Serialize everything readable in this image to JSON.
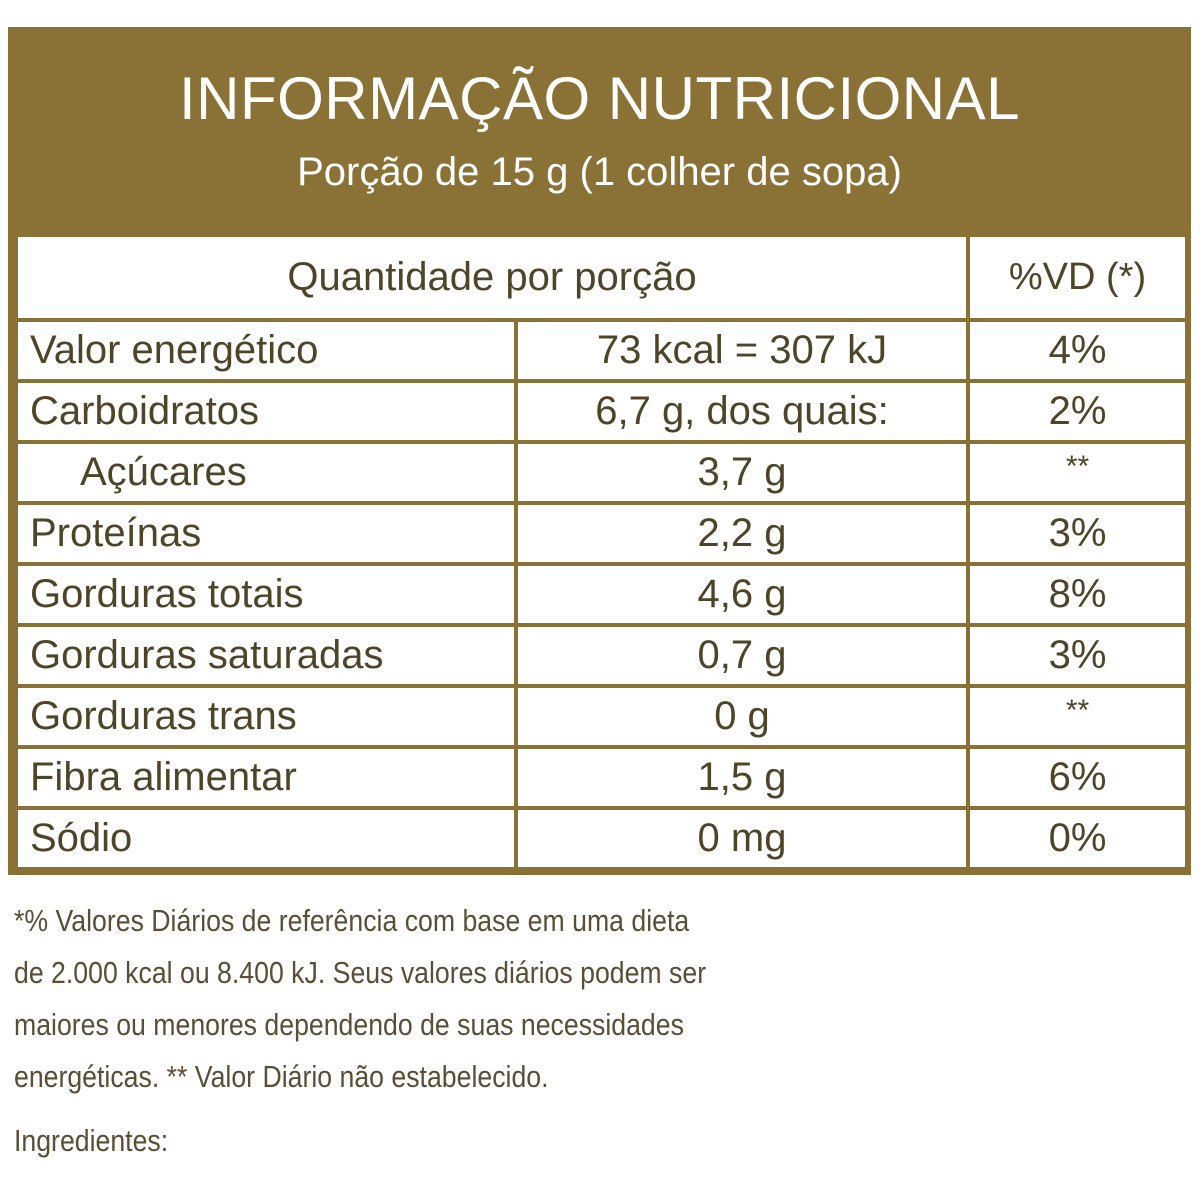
{
  "label": {
    "title": "INFORMAÇÃO NUTRICIONAL",
    "serving": "Porção de 15 g (1 colher de sopa)",
    "header_quantity": "Quantidade por porção",
    "header_vd": "%VD (*)",
    "rows": [
      {
        "name": "Valor energético",
        "amount": "73 kcal = 307 kJ",
        "vd": "4%"
      },
      {
        "name": "Carboidratos",
        "amount": "6,7 g, dos quais:",
        "vd": "2%"
      },
      {
        "name": "Açúcares",
        "amount": "3,7 g",
        "vd": "**"
      },
      {
        "name": "Proteínas",
        "amount": "2,2 g",
        "vd": "3%"
      },
      {
        "name": "Gorduras totais",
        "amount": "4,6 g",
        "vd": "8%"
      },
      {
        "name": "Gorduras saturadas",
        "amount": "0,7 g",
        "vd": "3%"
      },
      {
        "name": "Gorduras trans",
        "amount": "0 g",
        "vd": "**"
      },
      {
        "name": "Fibra alimentar",
        "amount": "1,5 g",
        "vd": "6%"
      },
      {
        "name": "Sódio",
        "amount": "0 mg",
        "vd": "0%"
      }
    ],
    "footnote_lines": [
      "*% Valores Diários de referência com base em uma dieta",
      "de 2.000 kcal ou 8.400 kJ. Seus valores diários podem ser",
      "maiores ou menores dependendo de suas necessidades",
      "energéticas. ** Valor Diário não estabelecido."
    ],
    "ingredients_label": "Ingredientes:"
  },
  "colors": {
    "panel": "#8a7237",
    "text": "#4e4428",
    "background": "#ffffff"
  }
}
